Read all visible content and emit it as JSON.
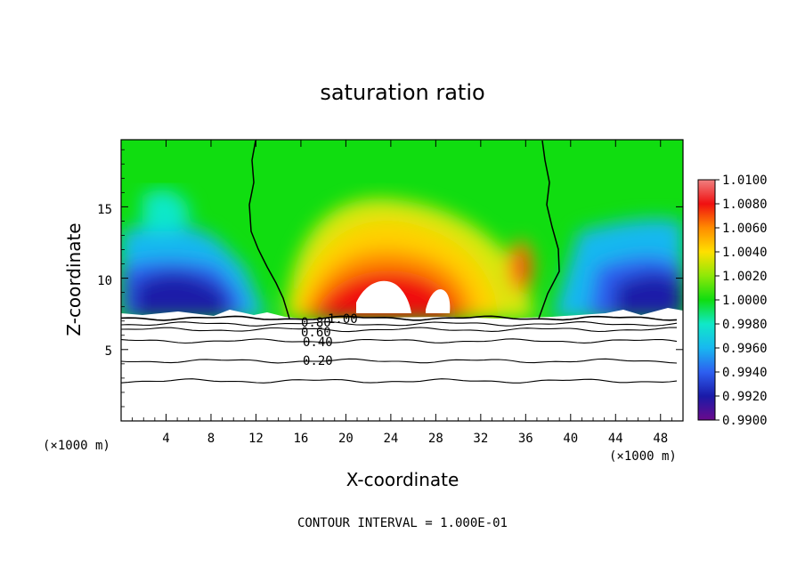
{
  "chart_data": {
    "type": "heatmap",
    "title": "saturation ratio",
    "xlabel": "X-coordinate",
    "ylabel": "Z-coordinate",
    "x_unit": "(×1000 m)",
    "y_unit": "(×1000 m)",
    "xlim": [
      0,
      50
    ],
    "ylim": [
      0,
      19.7
    ],
    "x_ticks": [
      4,
      8,
      12,
      16,
      20,
      24,
      28,
      32,
      36,
      40,
      44,
      48
    ],
    "y_ticks": [
      5,
      10,
      15
    ],
    "colorbar": {
      "min": 0.99,
      "max": 1.01,
      "tick_labels": [
        "1.0100",
        "1.0080",
        "1.0060",
        "1.0040",
        "1.0020",
        "1.0000",
        "0.9980",
        "0.9960",
        "0.9940",
        "0.9920",
        "0.9900"
      ],
      "colors": [
        "#6a0a8c",
        "#1a1aa8",
        "#2d5ff0",
        "#18b8f0",
        "#10e8c8",
        "#10dd10",
        "#d8e808",
        "#ffb000",
        "#ff4a00",
        "#e01010",
        "#f08080"
      ]
    },
    "contour_interval": "CONTOUR INTERVAL = 1.000E-01",
    "contour_labels": [
      "1.00",
      "0.80",
      "0.60",
      "0.40",
      "0.20"
    ],
    "contour_levels": [
      {
        "label": "1.00",
        "z": 7.2
      },
      {
        "label": "0.80",
        "z": 6.8
      },
      {
        "label": "0.60",
        "z": 6.4
      },
      {
        "label": "0.40",
        "z": 5.6
      },
      {
        "label": "0.20",
        "z": 4.2
      },
      {
        "label": "",
        "z": 2.8
      }
    ],
    "boundary_x": [
      15.0,
      37.5
    ],
    "cloud_base_z": 7.3
  }
}
